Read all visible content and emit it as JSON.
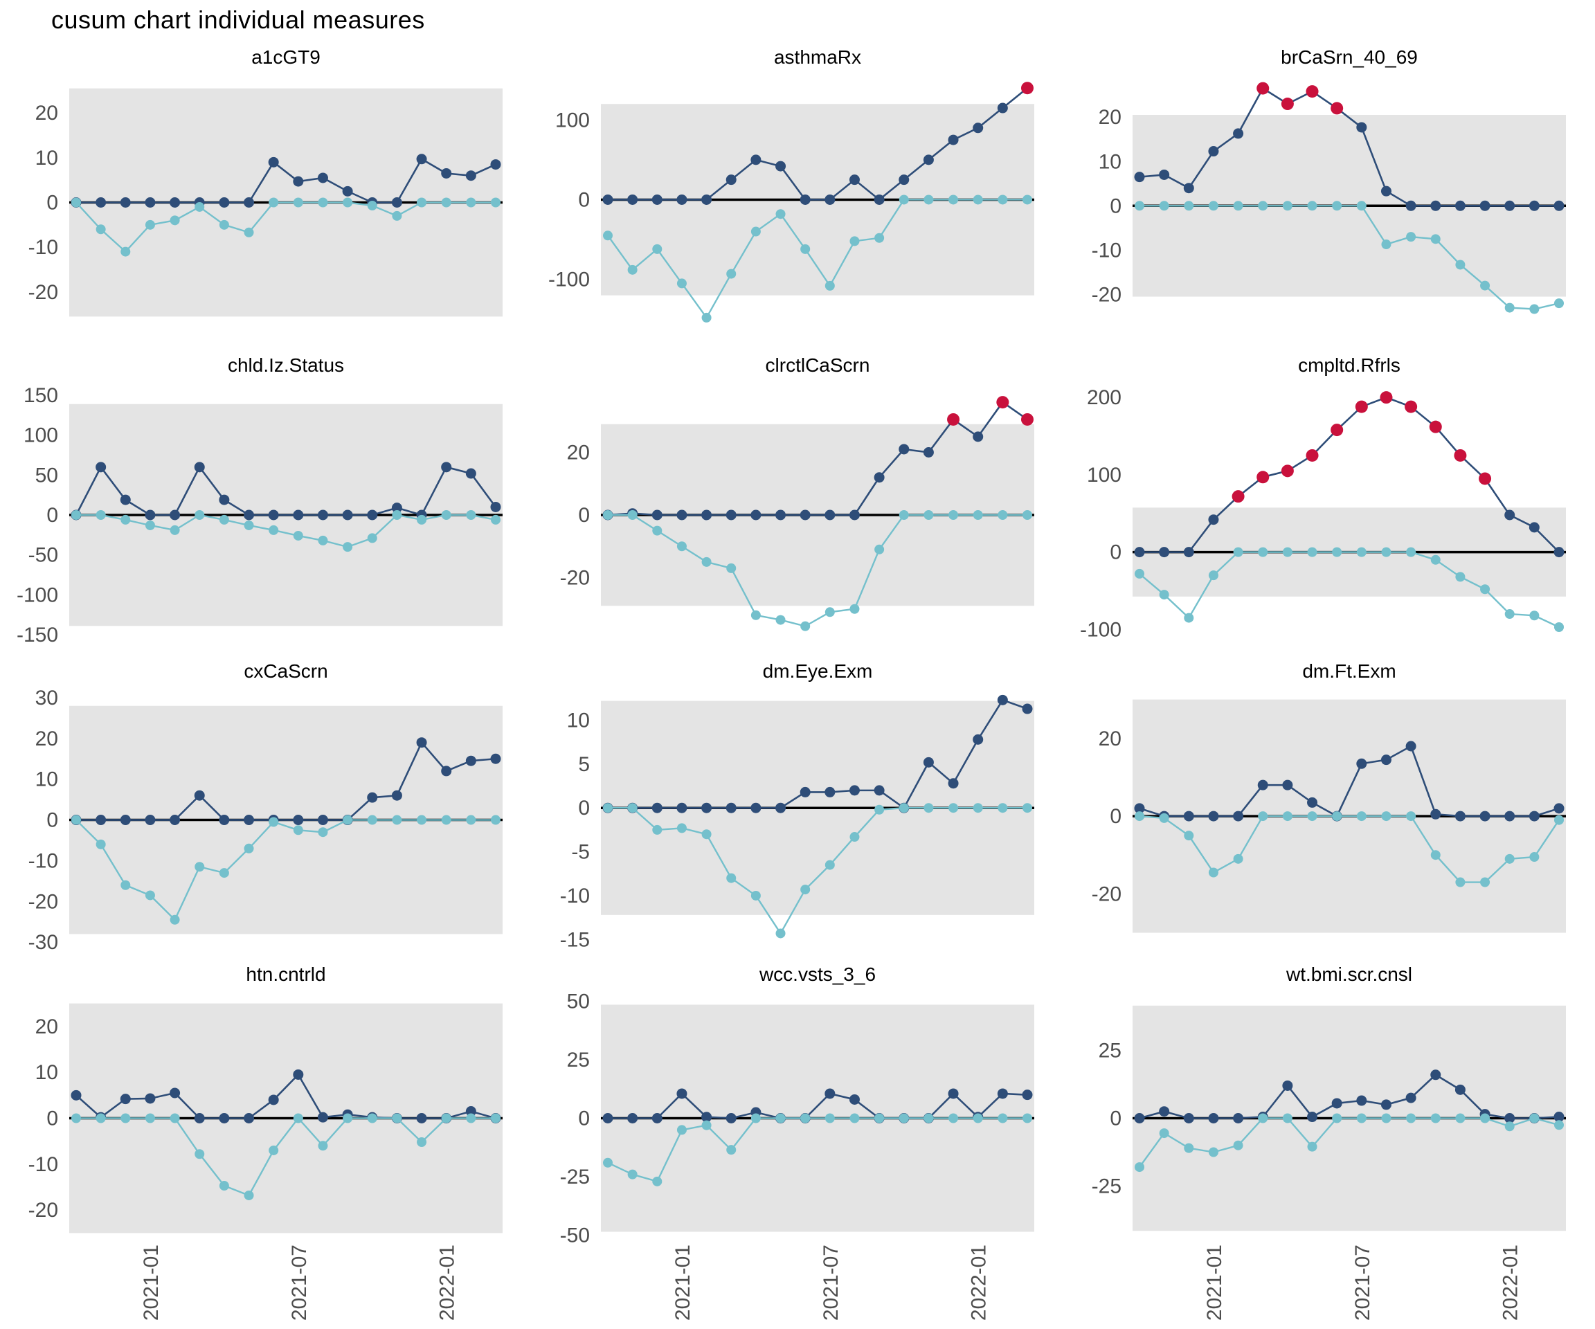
{
  "title": "cusum chart  individual measures",
  "colors": {
    "upper_line": "#2e4d78",
    "lower_line": "#74c0cc",
    "signal": "#c9113c",
    "band": "#e4e4e4",
    "zero_line": "#000000",
    "tick_text": "#4d4d4d",
    "facet_title_text": "#000000"
  },
  "chart_data": {
    "type": "line",
    "layout": "facet-grid-3x4",
    "grid": true,
    "legend_position": "none",
    "n_points": 18,
    "x_tick_labels": [
      "2021-01",
      "2021-07",
      "2022-01"
    ],
    "x_tick_indices": [
      3,
      9,
      15
    ],
    "series_names": [
      "upper cusum",
      "lower cusum",
      "signal"
    ],
    "facets": [
      {
        "title": "a1cGT9",
        "yticks": [
          20,
          10,
          0,
          -10,
          -20
        ],
        "ylim": [
          -27,
          27
        ],
        "band": 25.5,
        "upper": [
          0,
          0,
          0,
          0,
          0,
          0,
          0,
          0,
          9,
          4.7,
          5.5,
          2.5,
          0,
          0,
          9.7,
          6.5,
          6,
          8.5
        ],
        "lower": [
          0,
          -6,
          -11,
          -5,
          -4,
          -1,
          -5,
          -6.7,
          0,
          0,
          0,
          0,
          -0.7,
          -3,
          0,
          0,
          0,
          0
        ],
        "signals": []
      },
      {
        "title": "asthmaRx",
        "yticks": [
          100,
          0,
          -100
        ],
        "ylim": [
          -155,
          148
        ],
        "band": 120,
        "upper": [
          0,
          0,
          0,
          0,
          0,
          25,
          50,
          42,
          0,
          0,
          25,
          0,
          25,
          50,
          75,
          90,
          115,
          140
        ],
        "lower": [
          -45,
          -88,
          -62,
          -105,
          -148,
          -93,
          -40,
          -18,
          -62,
          -108,
          -52,
          -48,
          0,
          0,
          0,
          0,
          0,
          0
        ],
        "signals": [
          17
        ]
      },
      {
        "title": "brCaSrn_40_69",
        "yticks": [
          20,
          10,
          0,
          -10,
          -20
        ],
        "ylim": [
          -26.5,
          28
        ],
        "band": 20.5,
        "upper": [
          6.5,
          7,
          4,
          12.3,
          16.3,
          26.5,
          23,
          25.8,
          22,
          17.7,
          3.3,
          0,
          0,
          0,
          0,
          0,
          0,
          0
        ],
        "lower": [
          0,
          0,
          0,
          0,
          0,
          0,
          0,
          0,
          0,
          0,
          -8.7,
          -7,
          -7.5,
          -13.3,
          -18,
          -23,
          -23.3,
          -22
        ],
        "signals": [
          5,
          6,
          7,
          8
        ]
      },
      {
        "title": "chld.Iz.Status",
        "yticks": [
          150,
          100,
          50,
          0,
          -50,
          -100,
          -150
        ],
        "ylim": [
          -157,
          157
        ],
        "band": 139,
        "upper": [
          0,
          60,
          19,
          0,
          0,
          60,
          19,
          0,
          0,
          0,
          0,
          0,
          0,
          9,
          0,
          60,
          52,
          10
        ],
        "lower": [
          0,
          0,
          -6,
          -13,
          -19,
          0,
          -6,
          -13,
          -19,
          -26,
          -32,
          -40,
          -29,
          0,
          -6,
          0,
          0,
          -6
        ],
        "signals": []
      },
      {
        "title": "clrctlCaScrn",
        "yticks": [
          20,
          0,
          -20
        ],
        "ylim": [
          -40,
          40
        ],
        "band": 29,
        "upper": [
          0,
          0.5,
          0,
          0,
          0,
          0,
          0,
          0,
          0,
          0,
          0,
          12,
          21,
          20,
          30.5,
          25,
          36,
          30.5
        ],
        "lower": [
          0,
          0,
          -5,
          -10,
          -15,
          -17,
          -32,
          -33.5,
          -35.5,
          -31,
          -30,
          -11,
          0,
          0,
          0,
          0,
          0,
          0
        ],
        "signals": [
          14,
          16,
          17
        ]
      },
      {
        "title": "cmpltd.Rfrls",
        "yticks": [
          200,
          100,
          0,
          -100
        ],
        "ylim": [
          -114,
          210
        ],
        "band": 57.5,
        "upper": [
          0,
          0,
          0,
          42,
          72,
          97,
          105,
          125,
          158,
          188,
          200,
          188,
          162,
          125,
          95,
          48,
          32,
          0
        ],
        "lower": [
          -28,
          -55,
          -85,
          -30,
          0,
          0,
          0,
          0,
          0,
          0,
          0,
          0,
          -10,
          -32,
          -48,
          -80,
          -82,
          -97
        ],
        "signals": [
          4,
          5,
          6,
          7,
          8,
          9,
          10,
          11,
          12,
          13,
          14
        ]
      },
      {
        "title": "cxCaScrn",
        "yticks": [
          30,
          20,
          10,
          0,
          -10,
          -20,
          -30
        ],
        "ylim": [
          -31.5,
          30.5
        ],
        "band": 28,
        "upper": [
          0,
          0,
          0,
          0,
          0,
          6,
          0,
          0,
          0,
          0,
          0,
          0,
          5.5,
          6,
          19,
          12,
          14.5,
          15
        ],
        "lower": [
          0,
          -6,
          -16,
          -18.5,
          -24.5,
          -11.5,
          -13,
          -7,
          -0.5,
          -2.5,
          -3,
          0,
          0,
          0,
          0,
          0,
          0,
          0
        ],
        "signals": []
      },
      {
        "title": "dm.Eye.Exm",
        "yticks": [
          10,
          5,
          0,
          -5,
          -10,
          -15
        ],
        "ylim": [
          -16,
          12.8
        ],
        "band": 12.2,
        "upper": [
          0,
          0,
          0,
          0,
          0,
          0,
          0,
          0,
          1.8,
          1.8,
          2,
          2,
          0,
          5.2,
          2.8,
          7.8,
          12.3,
          11.3
        ],
        "lower": [
          0,
          0,
          -2.5,
          -2.3,
          -3,
          -8,
          -10,
          -14.3,
          -9.3,
          -6.5,
          -3.3,
          -0.2,
          0,
          0,
          0,
          0,
          0,
          0
        ],
        "signals": []
      },
      {
        "title": "dm.Ft.Exm",
        "yticks": [
          20,
          0,
          -20
        ],
        "ylim": [
          -34,
          31
        ],
        "band": 30,
        "upper": [
          2,
          0,
          0,
          0,
          0,
          8,
          8,
          3.5,
          0,
          13.5,
          14.5,
          18,
          0.5,
          0,
          0,
          0,
          0,
          2
        ],
        "lower": [
          0,
          -0.5,
          -5,
          -14.5,
          -11,
          0,
          0,
          0,
          0,
          0,
          0,
          0,
          -10,
          -17,
          -17,
          -11,
          -10.5,
          -1
        ],
        "signals": []
      },
      {
        "title": "htn.cntrld",
        "yticks": [
          20,
          10,
          0,
          -10,
          -20
        ],
        "ylim": [
          -26,
          26
        ],
        "band": 25,
        "upper": [
          5,
          0.2,
          4.2,
          4.3,
          5.5,
          0,
          0,
          0,
          4,
          9.5,
          0.2,
          0.8,
          0.2,
          0,
          0,
          0,
          1.5,
          0
        ],
        "lower": [
          0,
          0,
          0,
          0,
          0,
          -7.8,
          -14.7,
          -16.8,
          -7,
          0,
          -6,
          0,
          0,
          0,
          -5.2,
          0,
          0,
          0
        ],
        "signals": []
      },
      {
        "title": "wcc.vsts_3_6",
        "yticks": [
          50,
          25,
          0,
          -25,
          -50
        ],
        "ylim": [
          -51,
          51
        ],
        "band": 48.5,
        "upper": [
          0,
          0,
          0,
          10.5,
          0.5,
          0,
          2.5,
          0,
          0,
          10.5,
          8,
          0,
          0,
          0,
          10.5,
          0.5,
          10.5,
          10
        ],
        "lower": [
          -19,
          -24,
          -27,
          -5,
          -3,
          -13.5,
          0,
          0,
          0,
          0,
          0,
          0,
          0,
          0,
          0,
          0,
          0,
          0
        ],
        "signals": []
      },
      {
        "title": "wt.bmi.scr.cnsl",
        "yticks": [
          25,
          0,
          -25
        ],
        "ylim": [
          -44,
          44
        ],
        "band": 41.5,
        "upper": [
          0,
          2.5,
          0,
          0,
          0,
          0.5,
          12,
          0.5,
          5.5,
          6.5,
          5,
          7.5,
          16,
          10.5,
          1.5,
          0,
          0,
          0.5
        ],
        "lower": [
          -18,
          -5.5,
          -11,
          -12.5,
          -10,
          0,
          0,
          -10.5,
          0,
          0,
          0,
          0,
          0,
          0,
          0,
          -3,
          0,
          -2.5
        ],
        "signals": []
      }
    ]
  }
}
